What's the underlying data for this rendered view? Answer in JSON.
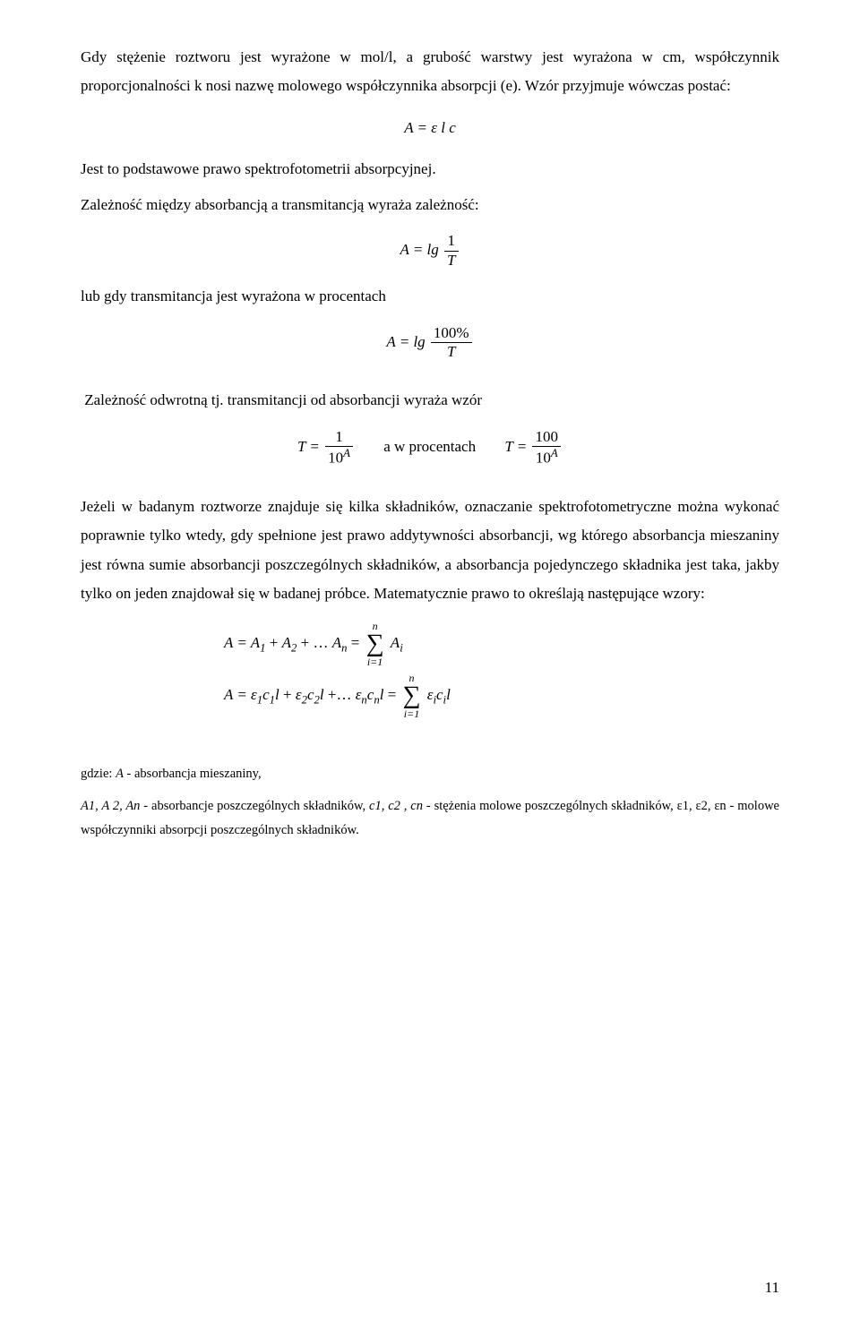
{
  "p1": "Gdy stężenie roztworu jest wyrażone w mol/l, a grubość warstwy jest wyrażona w cm, współczynnik proporcjonalności k nosi nazwę molowego współczynnika absorpcji (e). Wzór przyjmuje wówczas postać:",
  "eq1": "A = ε l c",
  "p2": "Jest to podstawowe prawo spektrofotometrii absorpcyjnej.",
  "p3": "Zależność między absorbancją a transmitancją wyraża zależność:",
  "eq2_lhs": "A = lg",
  "eq2_num": "1",
  "eq2_den": "T",
  "p4": "lub gdy transmitancja jest wyrażona w procentach",
  "eq3_lhs": "A = lg",
  "eq3_num": "100%",
  "eq3_den": "T",
  "p5": "Zależność odwrotną tj. transmitancji od absorbancji wyraża wzór",
  "eq4_lhs": "T =",
  "eq4_num": "1",
  "eq4_den_base": "10",
  "eq4_den_exp": "A",
  "eq4_mid": "a w procentach",
  "eq4_rhs": "T =",
  "eq4_num2": "100",
  "p6": "Jeżeli w badanym roztworze znajduje się kilka składników, oznaczanie spektrofotometryczne można wykonać poprawnie tylko wtedy, gdy spełnione jest prawo addytywności absorbancji, wg którego absorbancja mieszaniny jest równa sumie absorbancji poszczególnych składników, a absorbancja pojedynczego składnika jest taka, jakby tylko on jeden znajdował się w badanej próbce. Matematycznie prawo to określają następujące wzory:",
  "eq5_lhs": "A = A",
  "eq5_plus": " + ",
  "eq5_dots": "…",
  "eq5_eq": " = ",
  "eq5_upper": "n",
  "eq5_lower": "i=1",
  "eq5_rhs": "A",
  "eq6_lhs": "A = ε",
  "eq6_c": "c",
  "eq6_l": "l",
  "eq6_rhs": "ε",
  "def1_lead": "gdzie: ",
  "def1_sym": "A",
  "def1_rest": " - absorbancja mieszaniny,",
  "def2_sym": "A1, A 2, An",
  "def2_mid": " - absorbancje poszczególnych składników, ",
  "def2_sym2": "c1, c2 , cn",
  "def2_rest": " - stężenia molowe poszczególnych składników, ",
  "def2_sym3": "ε1, ε2, εn",
  "def2_rest2": " - molowe współczynniki absorpcji poszczególnych składników.",
  "page_number": "11",
  "subs": {
    "one": "1",
    "two": "2",
    "n": "n",
    "i": "i"
  }
}
